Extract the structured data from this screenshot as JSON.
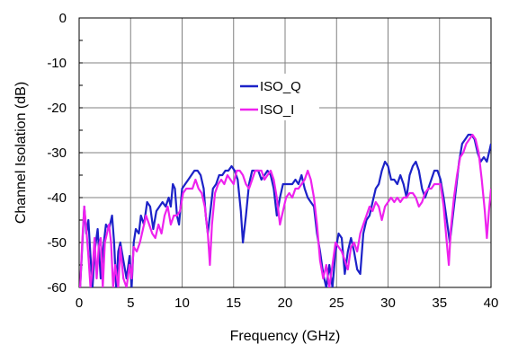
{
  "chart_data": {
    "type": "line",
    "title": "",
    "xlabel": "Frequency (GHz)",
    "ylabel": "Channel Isolation (dB)",
    "xlim": [
      0,
      40
    ],
    "ylim": [
      -60,
      0
    ],
    "xticks": [
      "0",
      "5",
      "10",
      "15",
      "20",
      "25",
      "30",
      "35",
      "40"
    ],
    "yticks": [
      "0",
      "-10",
      "-20",
      "-30",
      "-40",
      "-50",
      "-60"
    ],
    "grid": true,
    "legend_position": "center",
    "series": [
      {
        "name": "ISO_Q",
        "color": "#1c22c8",
        "points": [
          [
            0.1,
            -60
          ],
          [
            0.3,
            -51
          ],
          [
            0.5,
            -42
          ],
          [
            0.7,
            -48
          ],
          [
            0.9,
            -45
          ],
          [
            1.1,
            -53
          ],
          [
            1.3,
            -60
          ],
          [
            1.5,
            -52
          ],
          [
            1.8,
            -47
          ],
          [
            2.1,
            -58
          ],
          [
            2.3,
            -52
          ],
          [
            2.6,
            -46
          ],
          [
            2.9,
            -47
          ],
          [
            3.2,
            -44
          ],
          [
            3.4,
            -50
          ],
          [
            3.6,
            -60
          ],
          [
            3.8,
            -52
          ],
          [
            4.0,
            -50
          ],
          [
            4.3,
            -54
          ],
          [
            4.6,
            -58
          ],
          [
            4.9,
            -53
          ],
          [
            5.1,
            -60
          ],
          [
            5.3,
            -50
          ],
          [
            5.5,
            -47
          ],
          [
            5.8,
            -48
          ],
          [
            6.0,
            -44
          ],
          [
            6.3,
            -46
          ],
          [
            6.6,
            -41
          ],
          [
            6.9,
            -42
          ],
          [
            7.2,
            -47
          ],
          [
            7.5,
            -43
          ],
          [
            7.8,
            -42
          ],
          [
            8.1,
            -41
          ],
          [
            8.4,
            -42
          ],
          [
            8.7,
            -40
          ],
          [
            8.9,
            -42
          ],
          [
            9.1,
            -37
          ],
          [
            9.3,
            -38
          ],
          [
            9.5,
            -44
          ],
          [
            9.7,
            -46
          ],
          [
            10.0,
            -38
          ],
          [
            10.3,
            -37
          ],
          [
            10.6,
            -36
          ],
          [
            10.9,
            -35
          ],
          [
            11.2,
            -34
          ],
          [
            11.5,
            -34
          ],
          [
            11.8,
            -35
          ],
          [
            12.1,
            -38
          ],
          [
            12.3,
            -44
          ],
          [
            12.5,
            -48
          ],
          [
            12.7,
            -44
          ],
          [
            13.0,
            -38
          ],
          [
            13.3,
            -37
          ],
          [
            13.6,
            -35
          ],
          [
            13.9,
            -35
          ],
          [
            14.2,
            -34
          ],
          [
            14.5,
            -34
          ],
          [
            14.8,
            -33
          ],
          [
            15.1,
            -34
          ],
          [
            15.4,
            -36
          ],
          [
            15.7,
            -43
          ],
          [
            15.9,
            -50
          ],
          [
            16.2,
            -44
          ],
          [
            16.5,
            -37
          ],
          [
            16.8,
            -34
          ],
          [
            17.1,
            -34
          ],
          [
            17.4,
            -34
          ],
          [
            17.7,
            -36
          ],
          [
            18.0,
            -35
          ],
          [
            18.3,
            -34
          ],
          [
            18.6,
            -35
          ],
          [
            18.9,
            -38
          ],
          [
            19.2,
            -44
          ],
          [
            19.5,
            -40
          ],
          [
            19.8,
            -37
          ],
          [
            20.1,
            -37
          ],
          [
            20.4,
            -37
          ],
          [
            20.7,
            -37
          ],
          [
            21.0,
            -36
          ],
          [
            21.3,
            -37
          ],
          [
            21.6,
            -35
          ],
          [
            21.9,
            -38
          ],
          [
            22.2,
            -40
          ],
          [
            22.5,
            -41
          ],
          [
            22.8,
            -42
          ],
          [
            23.1,
            -48
          ],
          [
            23.4,
            -52
          ],
          [
            23.7,
            -57
          ],
          [
            24.0,
            -60
          ],
          [
            24.3,
            -55
          ],
          [
            24.6,
            -60
          ],
          [
            24.9,
            -52
          ],
          [
            25.2,
            -48
          ],
          [
            25.5,
            -49
          ],
          [
            25.8,
            -57
          ],
          [
            26.1,
            -52
          ],
          [
            26.4,
            -49
          ],
          [
            26.7,
            -52
          ],
          [
            27.0,
            -56
          ],
          [
            27.3,
            -57
          ],
          [
            27.6,
            -48
          ],
          [
            27.9,
            -45
          ],
          [
            28.2,
            -44
          ],
          [
            28.5,
            -41
          ],
          [
            28.8,
            -38
          ],
          [
            29.1,
            -37
          ],
          [
            29.4,
            -34
          ],
          [
            29.7,
            -32
          ],
          [
            30.0,
            -33
          ],
          [
            30.3,
            -36
          ],
          [
            30.6,
            -36
          ],
          [
            30.9,
            -37
          ],
          [
            31.2,
            -35
          ],
          [
            31.5,
            -37
          ],
          [
            31.8,
            -40
          ],
          [
            32.1,
            -35
          ],
          [
            32.4,
            -33
          ],
          [
            32.7,
            -32
          ],
          [
            33.0,
            -34
          ],
          [
            33.3,
            -38
          ],
          [
            33.6,
            -40
          ],
          [
            33.9,
            -38
          ],
          [
            34.2,
            -36
          ],
          [
            34.5,
            -34
          ],
          [
            34.8,
            -34
          ],
          [
            35.1,
            -36
          ],
          [
            35.4,
            -40
          ],
          [
            35.7,
            -45
          ],
          [
            36.0,
            -50
          ],
          [
            36.3,
            -44
          ],
          [
            36.6,
            -38
          ],
          [
            36.9,
            -32
          ],
          [
            37.2,
            -28
          ],
          [
            37.5,
            -27
          ],
          [
            37.8,
            -26
          ],
          [
            38.1,
            -26
          ],
          [
            38.4,
            -27
          ],
          [
            38.7,
            -30
          ],
          [
            39.0,
            -32
          ],
          [
            39.3,
            -31
          ],
          [
            39.6,
            -32
          ],
          [
            39.9,
            -29
          ],
          [
            40.0,
            -28
          ]
        ]
      },
      {
        "name": "ISO_I",
        "color": "#ee22ee",
        "points": [
          [
            0.1,
            -60
          ],
          [
            0.3,
            -50
          ],
          [
            0.5,
            -42
          ],
          [
            0.7,
            -47
          ],
          [
            0.9,
            -53
          ],
          [
            1.1,
            -60
          ],
          [
            1.3,
            -56
          ],
          [
            1.5,
            -49
          ],
          [
            1.7,
            -58
          ],
          [
            1.9,
            -51
          ],
          [
            2.1,
            -49
          ],
          [
            2.3,
            -60
          ],
          [
            2.5,
            -50
          ],
          [
            2.7,
            -48
          ],
          [
            2.9,
            -46
          ],
          [
            3.1,
            -50
          ],
          [
            3.3,
            -60
          ],
          [
            3.5,
            -55
          ],
          [
            3.8,
            -60
          ],
          [
            4.0,
            -51
          ],
          [
            4.3,
            -58
          ],
          [
            4.6,
            -60
          ],
          [
            4.9,
            -55
          ],
          [
            5.1,
            -58
          ],
          [
            5.3,
            -51
          ],
          [
            5.6,
            -52
          ],
          [
            5.9,
            -50
          ],
          [
            6.2,
            -47
          ],
          [
            6.5,
            -44
          ],
          [
            6.8,
            -46
          ],
          [
            7.1,
            -48
          ],
          [
            7.4,
            -49
          ],
          [
            7.7,
            -46
          ],
          [
            8.0,
            -48
          ],
          [
            8.3,
            -44
          ],
          [
            8.6,
            -42
          ],
          [
            8.9,
            -46
          ],
          [
            9.2,
            -44
          ],
          [
            9.5,
            -44
          ],
          [
            9.8,
            -43
          ],
          [
            10.1,
            -39
          ],
          [
            10.4,
            -38
          ],
          [
            10.7,
            -38
          ],
          [
            11.0,
            -38
          ],
          [
            11.3,
            -36
          ],
          [
            11.6,
            -38
          ],
          [
            11.9,
            -39
          ],
          [
            12.2,
            -42
          ],
          [
            12.5,
            -48
          ],
          [
            12.7,
            -55
          ],
          [
            12.9,
            -46
          ],
          [
            13.2,
            -39
          ],
          [
            13.5,
            -37
          ],
          [
            13.8,
            -36
          ],
          [
            14.1,
            -37
          ],
          [
            14.4,
            -35
          ],
          [
            14.7,
            -36
          ],
          [
            15.0,
            -37
          ],
          [
            15.3,
            -34
          ],
          [
            15.6,
            -34
          ],
          [
            15.9,
            -35
          ],
          [
            16.2,
            -37
          ],
          [
            16.5,
            -38
          ],
          [
            16.8,
            -36
          ],
          [
            17.1,
            -34
          ],
          [
            17.4,
            -34
          ],
          [
            17.7,
            -34
          ],
          [
            18.0,
            -36
          ],
          [
            18.3,
            -35
          ],
          [
            18.6,
            -34
          ],
          [
            18.9,
            -36
          ],
          [
            19.2,
            -40
          ],
          [
            19.5,
            -46
          ],
          [
            19.8,
            -43
          ],
          [
            20.1,
            -40
          ],
          [
            20.4,
            -39
          ],
          [
            20.7,
            -40
          ],
          [
            21.0,
            -38
          ],
          [
            21.3,
            -38
          ],
          [
            21.6,
            -37
          ],
          [
            21.9,
            -36
          ],
          [
            22.2,
            -34
          ],
          [
            22.5,
            -36
          ],
          [
            22.8,
            -40
          ],
          [
            23.1,
            -46
          ],
          [
            23.4,
            -54
          ],
          [
            23.7,
            -58
          ],
          [
            24.0,
            -55
          ],
          [
            24.3,
            -60
          ],
          [
            24.6,
            -55
          ],
          [
            24.9,
            -50
          ],
          [
            25.2,
            -51
          ],
          [
            25.5,
            -52
          ],
          [
            25.8,
            -54
          ],
          [
            26.1,
            -56
          ],
          [
            26.4,
            -51
          ],
          [
            26.7,
            -50
          ],
          [
            27.0,
            -52
          ],
          [
            27.3,
            -48
          ],
          [
            27.6,
            -46
          ],
          [
            27.9,
            -44
          ],
          [
            28.2,
            -42
          ],
          [
            28.5,
            -43
          ],
          [
            28.8,
            -41
          ],
          [
            29.1,
            -42
          ],
          [
            29.4,
            -45
          ],
          [
            29.7,
            -42
          ],
          [
            30.0,
            -41
          ],
          [
            30.3,
            -40
          ],
          [
            30.6,
            -41
          ],
          [
            30.9,
            -40
          ],
          [
            31.2,
            -41
          ],
          [
            31.5,
            -40
          ],
          [
            31.8,
            -40
          ],
          [
            32.1,
            -39
          ],
          [
            32.4,
            -39
          ],
          [
            32.7,
            -40
          ],
          [
            33.0,
            -42
          ],
          [
            33.3,
            -41
          ],
          [
            33.6,
            -39
          ],
          [
            33.9,
            -38
          ],
          [
            34.2,
            -38
          ],
          [
            34.5,
            -37
          ],
          [
            34.8,
            -37
          ],
          [
            35.1,
            -37
          ],
          [
            35.4,
            -42
          ],
          [
            35.7,
            -50
          ],
          [
            35.9,
            -55
          ],
          [
            36.1,
            -47
          ],
          [
            36.4,
            -40
          ],
          [
            36.7,
            -35
          ],
          [
            37.0,
            -31
          ],
          [
            37.3,
            -30
          ],
          [
            37.6,
            -28
          ],
          [
            37.9,
            -27
          ],
          [
            38.2,
            -26
          ],
          [
            38.5,
            -27
          ],
          [
            38.8,
            -30
          ],
          [
            39.1,
            -36
          ],
          [
            39.4,
            -43
          ],
          [
            39.6,
            -49
          ],
          [
            39.8,
            -43
          ],
          [
            40.0,
            -38
          ]
        ]
      }
    ]
  }
}
